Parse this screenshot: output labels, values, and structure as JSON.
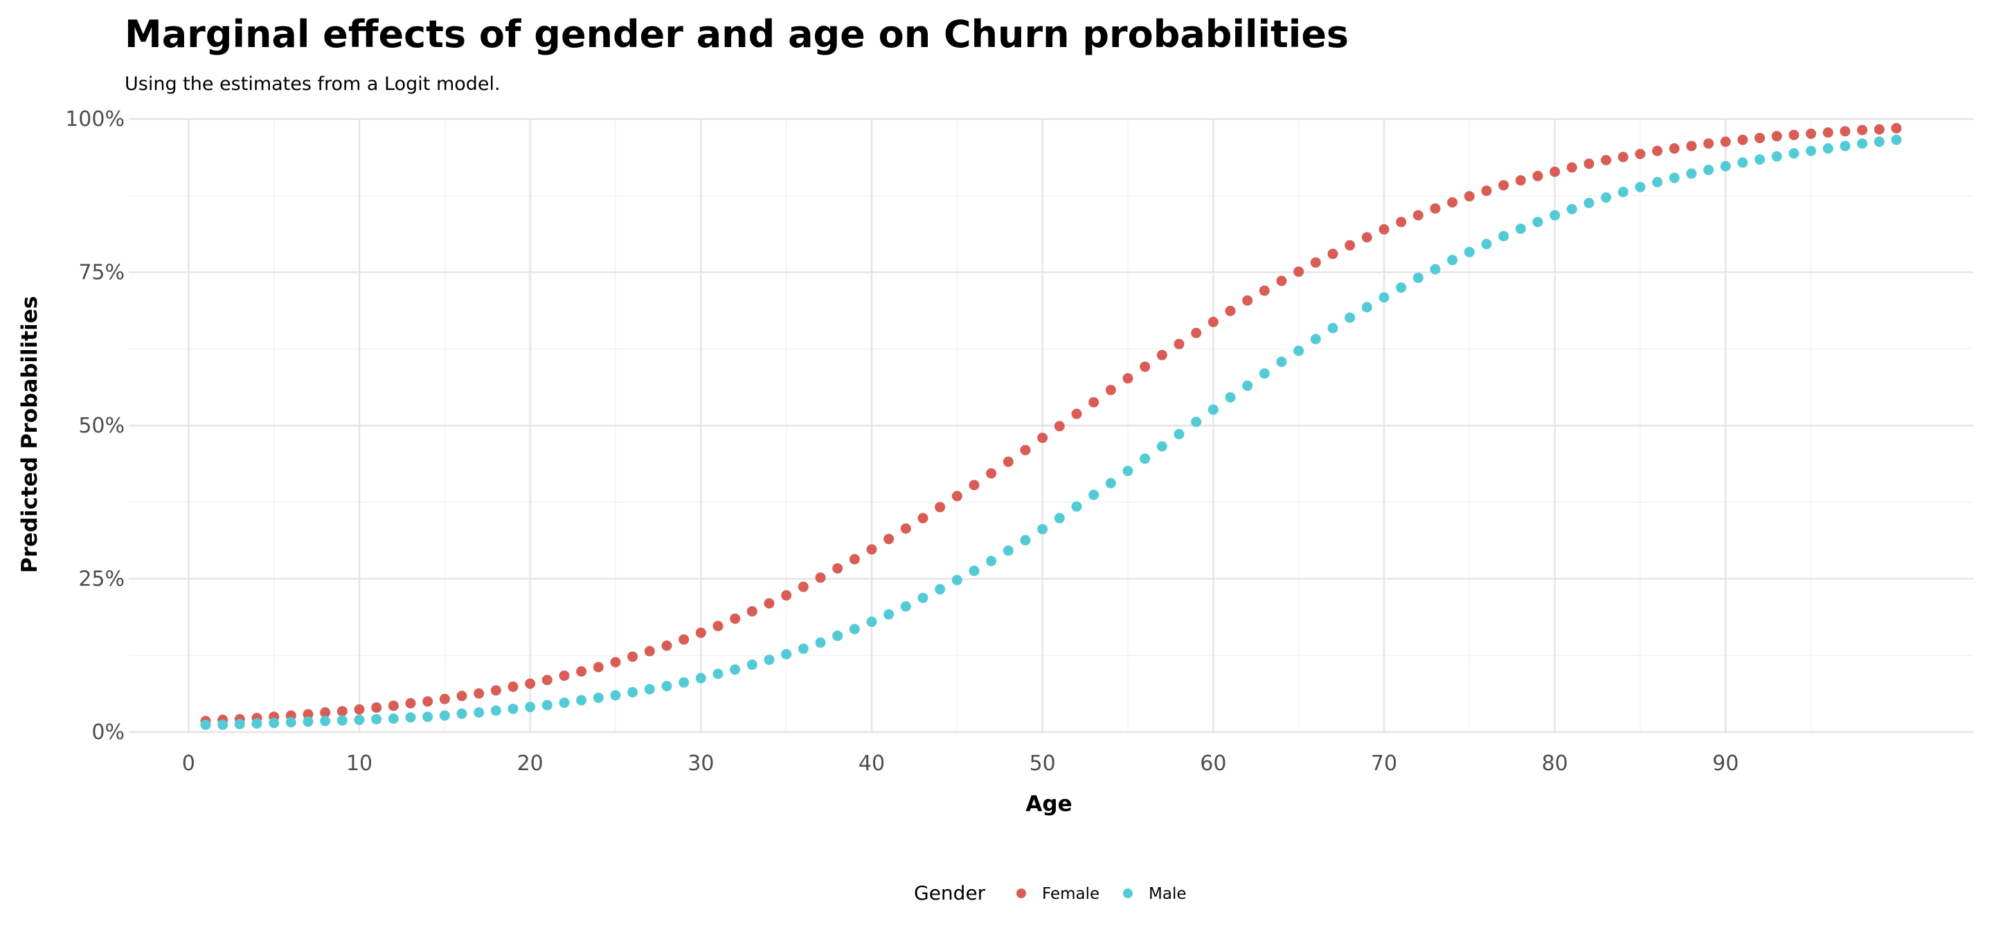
{
  "chart_data": {
    "type": "scatter",
    "title": "Marginal effects of gender and age on Churn probabilities",
    "subtitle": "Using the estimates from a Logit model.",
    "xlabel": "Age",
    "ylabel": "Predicted Probabilities",
    "xlim": [
      -3.5,
      104.5
    ],
    "ylim": [
      0,
      1
    ],
    "x_ticks": [
      0,
      10,
      20,
      30,
      40,
      50,
      60,
      70,
      80,
      90
    ],
    "y_ticks": [
      0,
      0.25,
      0.5,
      0.75,
      1
    ],
    "y_tick_labels": [
      "0%",
      "25%",
      "50%",
      "75%",
      "100%"
    ],
    "grid": true,
    "legend": {
      "title": "Gender",
      "position": "bottom"
    },
    "series": [
      {
        "name": "Female",
        "color": "#d95c55",
        "x_start": 1,
        "x_end": 100,
        "logit_intercept": -4.5,
        "logit_slope": 0.081,
        "values": [
          0.018,
          0.02,
          0.021,
          0.023,
          0.025,
          0.027,
          0.029,
          0.032,
          0.034,
          0.037,
          0.04,
          0.043,
          0.047,
          0.05,
          0.054,
          0.059,
          0.063,
          0.068,
          0.074,
          0.079,
          0.085,
          0.092,
          0.099,
          0.106,
          0.114,
          0.123,
          0.132,
          0.141,
          0.151,
          0.162,
          0.173,
          0.185,
          0.197,
          0.21,
          0.223,
          0.237,
          0.252,
          0.267,
          0.282,
          0.298,
          0.315,
          0.332,
          0.349,
          0.367,
          0.385,
          0.403,
          0.422,
          0.441,
          0.46,
          0.48,
          0.499,
          0.519,
          0.538,
          0.558,
          0.577,
          0.596,
          0.615,
          0.633,
          0.651,
          0.669,
          0.687,
          0.704,
          0.72,
          0.736,
          0.751,
          0.766,
          0.78,
          0.794,
          0.807,
          0.82,
          0.832,
          0.843,
          0.854,
          0.864,
          0.874,
          0.883,
          0.892,
          0.9,
          0.907,
          0.914,
          0.921,
          0.927,
          0.933,
          0.938,
          0.943,
          0.948,
          0.952,
          0.956,
          0.96,
          0.963,
          0.966,
          0.969,
          0.972,
          0.974,
          0.976,
          0.978,
          0.98,
          0.982,
          0.983,
          0.985
        ]
      },
      {
        "name": "Male",
        "color": "#53cbd7",
        "x_start": 1,
        "x_end": 100,
        "logit_intercept": -5.2,
        "logit_slope": 0.081,
        "values": [
          0.012,
          0.012,
          0.013,
          0.014,
          0.015,
          0.016,
          0.017,
          0.018,
          0.019,
          0.02,
          0.021,
          0.022,
          0.024,
          0.025,
          0.027,
          0.03,
          0.032,
          0.035,
          0.038,
          0.041,
          0.044,
          0.048,
          0.052,
          0.056,
          0.06,
          0.065,
          0.07,
          0.075,
          0.081,
          0.088,
          0.095,
          0.102,
          0.11,
          0.118,
          0.127,
          0.136,
          0.146,
          0.157,
          0.168,
          0.18,
          0.192,
          0.205,
          0.219,
          0.233,
          0.248,
          0.263,
          0.279,
          0.296,
          0.313,
          0.331,
          0.349,
          0.368,
          0.387,
          0.406,
          0.426,
          0.446,
          0.466,
          0.486,
          0.506,
          0.526,
          0.546,
          0.565,
          0.585,
          0.604,
          0.622,
          0.641,
          0.659,
          0.676,
          0.693,
          0.709,
          0.725,
          0.741,
          0.755,
          0.77,
          0.783,
          0.796,
          0.809,
          0.821,
          0.832,
          0.843,
          0.853,
          0.863,
          0.872,
          0.881,
          0.889,
          0.897,
          0.904,
          0.911,
          0.917,
          0.923,
          0.929,
          0.934,
          0.939,
          0.944,
          0.948,
          0.952,
          0.956,
          0.96,
          0.963,
          0.966
        ]
      }
    ]
  }
}
